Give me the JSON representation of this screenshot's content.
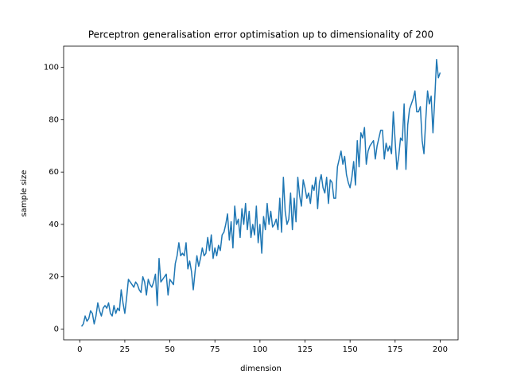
{
  "chart_data": {
    "type": "line",
    "title": "Perceptron generalisation error optimisation up to dimensionality of 200",
    "x_label": "dimension",
    "y_label": "sample size",
    "x": [
      1,
      2,
      3,
      4,
      5,
      6,
      7,
      8,
      9,
      10,
      11,
      12,
      13,
      14,
      15,
      16,
      17,
      18,
      19,
      20,
      21,
      22,
      23,
      24,
      25,
      26,
      27,
      28,
      29,
      30,
      31,
      32,
      33,
      34,
      35,
      36,
      37,
      38,
      39,
      40,
      41,
      42,
      43,
      44,
      45,
      46,
      47,
      48,
      49,
      50,
      51,
      52,
      53,
      54,
      55,
      56,
      57,
      58,
      59,
      60,
      61,
      62,
      63,
      64,
      65,
      66,
      67,
      68,
      69,
      70,
      71,
      72,
      73,
      74,
      75,
      76,
      77,
      78,
      79,
      80,
      81,
      82,
      83,
      84,
      85,
      86,
      87,
      88,
      89,
      90,
      91,
      92,
      93,
      94,
      95,
      96,
      97,
      98,
      99,
      100,
      101,
      102,
      103,
      104,
      105,
      106,
      107,
      108,
      109,
      110,
      111,
      112,
      113,
      114,
      115,
      116,
      117,
      118,
      119,
      120,
      121,
      122,
      123,
      124,
      125,
      126,
      127,
      128,
      129,
      130,
      131,
      132,
      133,
      134,
      135,
      136,
      137,
      138,
      139,
      140,
      141,
      142,
      143,
      144,
      145,
      146,
      147,
      148,
      149,
      150,
      151,
      152,
      153,
      154,
      155,
      156,
      157,
      158,
      159,
      160,
      161,
      162,
      163,
      164,
      165,
      166,
      167,
      168,
      169,
      170,
      171,
      172,
      173,
      174,
      175,
      176,
      177,
      178,
      179,
      180,
      181,
      182,
      183,
      184,
      185,
      186,
      187,
      188,
      189,
      190,
      191,
      192,
      193,
      194,
      195,
      196,
      197,
      198,
      199,
      200
    ],
    "series": [
      {
        "name": "sample size",
        "color": "#1f77b4",
        "values": [
          1,
          2,
          5,
          3,
          4,
          7,
          6,
          2,
          5,
          10,
          7,
          5,
          8,
          9,
          8,
          10,
          6,
          5,
          9,
          6,
          8,
          7,
          15,
          10,
          6,
          12,
          19,
          18,
          17,
          16,
          18,
          17,
          15,
          14,
          20,
          18,
          13,
          19,
          17,
          16,
          18,
          21,
          9,
          27,
          18,
          19,
          20,
          21,
          13,
          19,
          18,
          17,
          25,
          28,
          33,
          28,
          29,
          28,
          33,
          23,
          26,
          22,
          15,
          22,
          28,
          24,
          27,
          31,
          28,
          29,
          35,
          30,
          36,
          27,
          31,
          28,
          32,
          30,
          36,
          37,
          40,
          44,
          34,
          41,
          31,
          47,
          40,
          42,
          35,
          46,
          40,
          48,
          38,
          45,
          35,
          40,
          36,
          47,
          33,
          40,
          29,
          43,
          38,
          48,
          40,
          45,
          39,
          40,
          42,
          38,
          50,
          37,
          58,
          45,
          40,
          42,
          52,
          38,
          50,
          41,
          58,
          51,
          47,
          57,
          54,
          50,
          52,
          48,
          55,
          53,
          58,
          46,
          56,
          59,
          54,
          52,
          58,
          48,
          57,
          56,
          50,
          50,
          62,
          65,
          68,
          63,
          66,
          59,
          56,
          54,
          58,
          64,
          55,
          72,
          62,
          75,
          73,
          77,
          63,
          68,
          70,
          71,
          72,
          65,
          70,
          73,
          76,
          76,
          65,
          71,
          68,
          70,
          67,
          83,
          72,
          61,
          66,
          73,
          72,
          86,
          61,
          78,
          84,
          86,
          88,
          91,
          83,
          83,
          85,
          72,
          67,
          80,
          91,
          86,
          89,
          75,
          88,
          103,
          96,
          98
        ]
      }
    ],
    "xlim": [
      -8.95,
      209.95
    ],
    "ylim": [
      -4.1,
      108.1
    ],
    "xticks": [
      0,
      25,
      50,
      75,
      100,
      125,
      150,
      175,
      200
    ],
    "yticks": [
      0,
      20,
      40,
      60,
      80,
      100
    ]
  }
}
